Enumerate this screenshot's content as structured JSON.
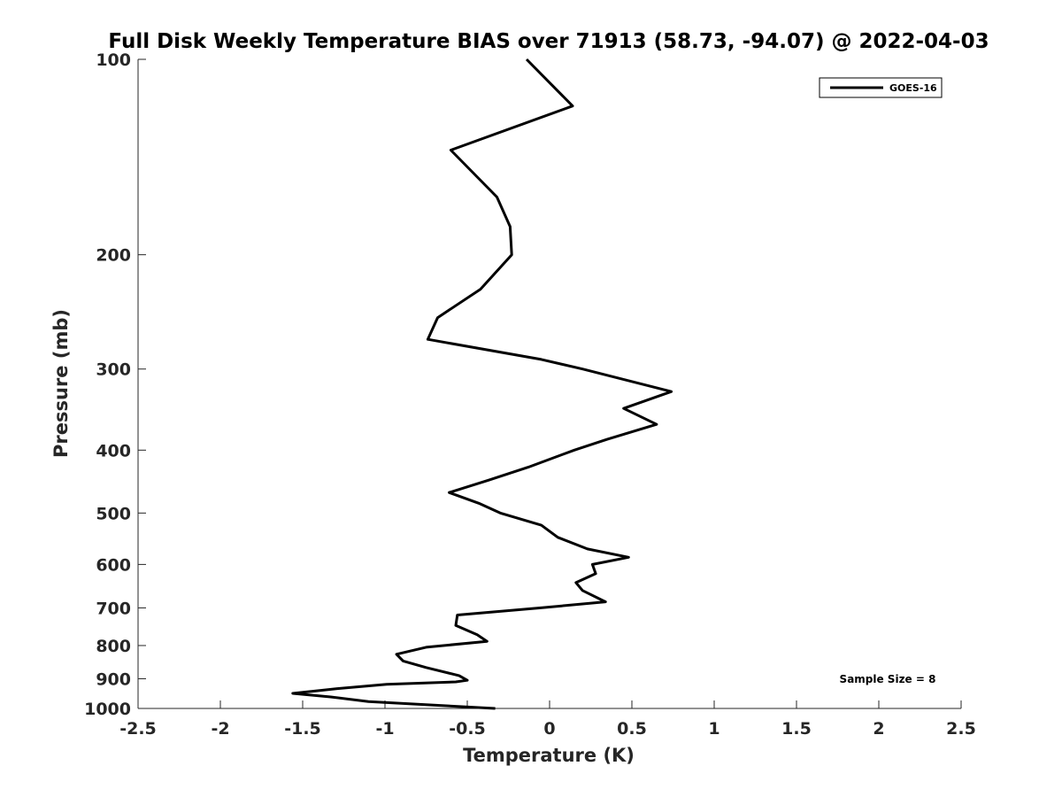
{
  "chart_data": {
    "type": "line",
    "title": "Full Disk Weekly Temperature BIAS over 71913 (58.73, -94.07) @ 2022-04-03",
    "xlabel": "Temperature (K)",
    "ylabel": "Pressure (mb)",
    "xlim": [
      -2.5,
      2.5
    ],
    "ylim": [
      100,
      1000
    ],
    "y_scale": "log",
    "y_reversed": true,
    "x_ticks": [
      -2.5,
      -2,
      -1.5,
      -1,
      -0.5,
      0,
      0.5,
      1,
      1.5,
      2,
      2.5
    ],
    "x_tick_labels": [
      "-2.5",
      "-2",
      "-1.5",
      "-1",
      "-0.5",
      "0",
      "0.5",
      "1",
      "1.5",
      "2",
      "2.5"
    ],
    "y_ticks": [
      100,
      200,
      300,
      400,
      500,
      600,
      700,
      800,
      900,
      1000
    ],
    "y_tick_labels": [
      "100",
      "200",
      "300",
      "400",
      "500",
      "600",
      "700",
      "800",
      "900",
      "1000"
    ],
    "grid": false,
    "legend_position": "top-right",
    "series": [
      {
        "name": "GOES-16",
        "color": "#000000",
        "points": [
          {
            "x": -0.14,
            "p": 100
          },
          {
            "x": 0.14,
            "p": 118
          },
          {
            "x": -0.6,
            "p": 138
          },
          {
            "x": -0.32,
            "p": 163
          },
          {
            "x": -0.24,
            "p": 181
          },
          {
            "x": -0.23,
            "p": 200
          },
          {
            "x": -0.42,
            "p": 226
          },
          {
            "x": -0.68,
            "p": 250
          },
          {
            "x": -0.74,
            "p": 270
          },
          {
            "x": -0.05,
            "p": 290
          },
          {
            "x": 0.2,
            "p": 300
          },
          {
            "x": 0.74,
            "p": 325
          },
          {
            "x": 0.45,
            "p": 345
          },
          {
            "x": 0.65,
            "p": 365
          },
          {
            "x": 0.35,
            "p": 385
          },
          {
            "x": 0.15,
            "p": 400
          },
          {
            "x": -0.13,
            "p": 425
          },
          {
            "x": -0.37,
            "p": 445
          },
          {
            "x": -0.61,
            "p": 465
          },
          {
            "x": -0.43,
            "p": 483
          },
          {
            "x": -0.3,
            "p": 500
          },
          {
            "x": -0.05,
            "p": 522
          },
          {
            "x": 0.05,
            "p": 545
          },
          {
            "x": 0.23,
            "p": 568
          },
          {
            "x": 0.48,
            "p": 585
          },
          {
            "x": 0.26,
            "p": 600
          },
          {
            "x": 0.28,
            "p": 620
          },
          {
            "x": 0.16,
            "p": 640
          },
          {
            "x": 0.2,
            "p": 658
          },
          {
            "x": 0.34,
            "p": 685
          },
          {
            "x": -0.06,
            "p": 700
          },
          {
            "x": -0.56,
            "p": 718
          },
          {
            "x": -0.57,
            "p": 745
          },
          {
            "x": -0.44,
            "p": 770
          },
          {
            "x": -0.38,
            "p": 788
          },
          {
            "x": -0.75,
            "p": 805
          },
          {
            "x": -0.93,
            "p": 825
          },
          {
            "x": -0.89,
            "p": 845
          },
          {
            "x": -0.75,
            "p": 865
          },
          {
            "x": -0.55,
            "p": 890
          },
          {
            "x": -0.5,
            "p": 905
          },
          {
            "x": -0.57,
            "p": 910
          },
          {
            "x": -0.99,
            "p": 918
          },
          {
            "x": -1.29,
            "p": 932
          },
          {
            "x": -1.56,
            "p": 948
          },
          {
            "x": -1.33,
            "p": 960
          },
          {
            "x": -1.1,
            "p": 976
          },
          {
            "x": -0.33,
            "p": 1000
          }
        ]
      }
    ],
    "annotation": "Sample Size = 8"
  }
}
